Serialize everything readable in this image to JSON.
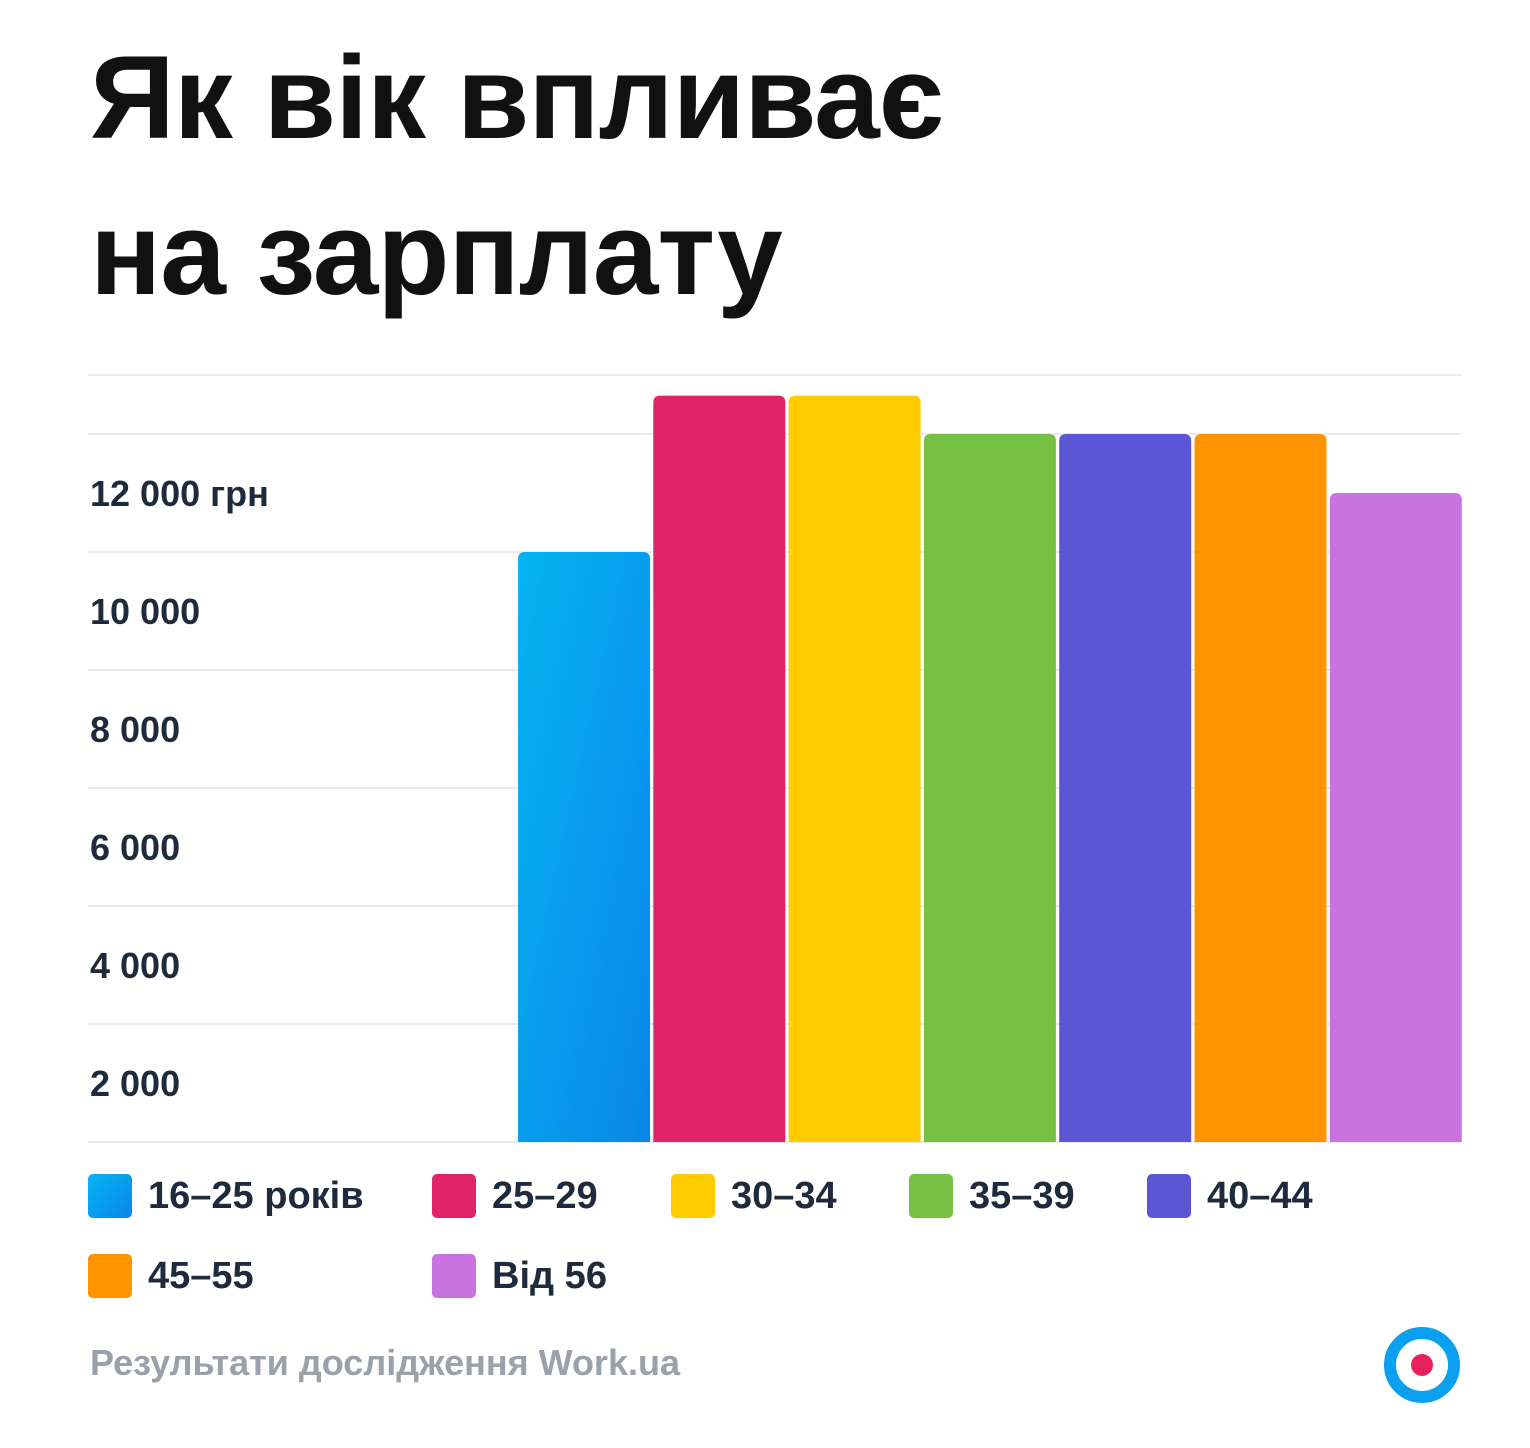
{
  "title_line1": "Як вік впливає",
  "title_line2": "на зарплату",
  "chart_data": {
    "type": "bar",
    "title": "Як вік впливає на зарплату",
    "categories": [
      "16–25 років",
      "25–29",
      "30–34",
      "35–39",
      "40–44",
      "45–55",
      "Від 56"
    ],
    "values": [
      10000,
      12650,
      12650,
      12000,
      12000,
      12000,
      11000
    ],
    "colors": [
      "#0a9ff0",
      "#e12367",
      "#ffcc00",
      "#76c143",
      "#5b56d6",
      "#ff9400",
      "#c973e0"
    ],
    "y_ticks": [
      2000,
      4000,
      6000,
      8000,
      10000,
      12000
    ],
    "y_tick_labels": [
      "2 000",
      "4 000",
      "6 000",
      "8 000",
      "10 000",
      "12 000 грн"
    ],
    "ylim": [
      0,
      12000
    ],
    "grid": true,
    "legend_position": "bottom"
  },
  "legend": [
    {
      "label": "16–25 років",
      "color": "#0a9ff0"
    },
    {
      "label": "25–29",
      "color": "#e12367"
    },
    {
      "label": "30–34",
      "color": "#ffcc00"
    },
    {
      "label": "35–39",
      "color": "#76c143"
    },
    {
      "label": "40–44",
      "color": "#5b56d6"
    },
    {
      "label": "45–55",
      "color": "#ff9400"
    },
    {
      "label": "Від 56",
      "color": "#c973e0"
    }
  ],
  "source": "Результати дослідження Work.ua",
  "logo_colors": {
    "ring": "#0aa0ef",
    "dot": "#e8205f"
  }
}
